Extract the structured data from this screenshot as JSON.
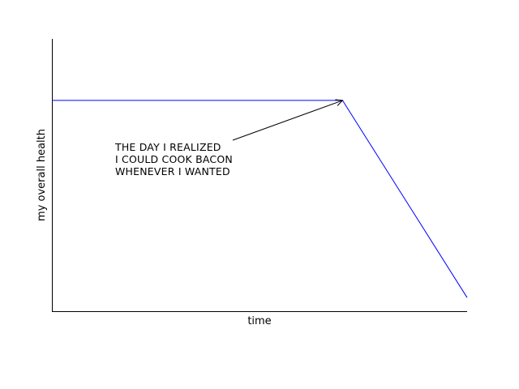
{
  "chart_data": {
    "type": "line",
    "title": "",
    "xlabel": "time",
    "ylabel": "my overall health",
    "xlim": [
      0,
      100
    ],
    "ylim": [
      0,
      100
    ],
    "grid": false,
    "ticks_visible": false,
    "series": [
      {
        "x": [
          0,
          70,
          100
        ],
        "y": [
          77.4,
          77.4,
          5
        ],
        "color": "#0000ff"
      }
    ],
    "annotations": [
      {
        "lines": [
          "THE DAY I REALIZED",
          "I COULD COOK BACON",
          "WHENEVER I WANTED"
        ],
        "arrow_to": {
          "x": 70,
          "y": 77.4
        }
      }
    ]
  }
}
